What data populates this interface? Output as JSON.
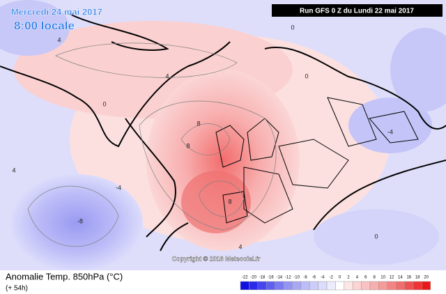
{
  "header": {
    "date": "Mercredi 24 mai 2017",
    "time": "8:00 locale",
    "run": "Run GFS 0 Z du Lundi 22 mai 2017"
  },
  "footer": {
    "title": "Anomalie Temp. 850hPa (°C)",
    "lead": "(+ 54h)",
    "copyright": "Copyright © 2016 Meteociel.fr"
  },
  "contour_labels": [
    "4",
    "0",
    "4",
    "8",
    "8",
    "8",
    "4",
    "0",
    "-4",
    "-8",
    "0",
    "4",
    "-4",
    "0"
  ],
  "legend": {
    "ticks": [
      -22,
      -20,
      -18,
      -16,
      -14,
      -12,
      -10,
      -8,
      -6,
      -4,
      -2,
      0,
      2,
      4,
      6,
      8,
      10,
      12,
      14,
      16,
      18,
      20
    ],
    "colors": [
      "#1010e0",
      "#2a2ae8",
      "#4646ee",
      "#6060f0",
      "#7a7af2",
      "#9494f4",
      "#a8a8f6",
      "#bcbcf8",
      "#ccccfa",
      "#dcdcfc",
      "#ececfe",
      "#ffffff",
      "#fde6e6",
      "#fcd4d4",
      "#fac2c2",
      "#f8aeae",
      "#f69a9a",
      "#f48484",
      "#f26c6c",
      "#f05050",
      "#ee3434",
      "#e81818"
    ]
  }
}
